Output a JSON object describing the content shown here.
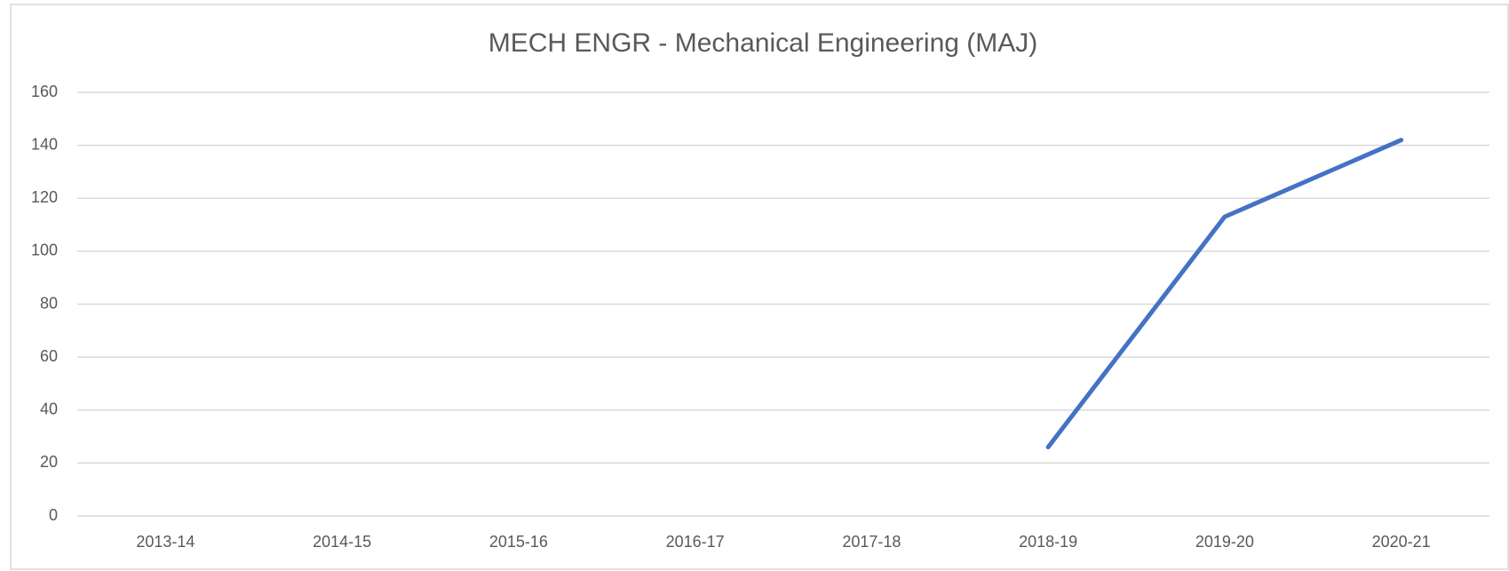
{
  "chart_data": {
    "type": "line",
    "title": "MECH ENGR - Mechanical Engineering (MAJ)",
    "categories": [
      "2013-14",
      "2014-15",
      "2015-16",
      "2016-17",
      "2017-18",
      "2018-19",
      "2019-20",
      "2020-21"
    ],
    "series": [
      {
        "name": "MECH ENGR - Mechanical Engineering (MAJ)",
        "color": "#4472c4",
        "values": [
          null,
          null,
          null,
          null,
          null,
          26,
          113,
          142
        ]
      }
    ],
    "ylim": [
      0,
      160
    ],
    "yticks": [
      0,
      20,
      40,
      60,
      80,
      100,
      120,
      140,
      160
    ],
    "grid": true
  }
}
